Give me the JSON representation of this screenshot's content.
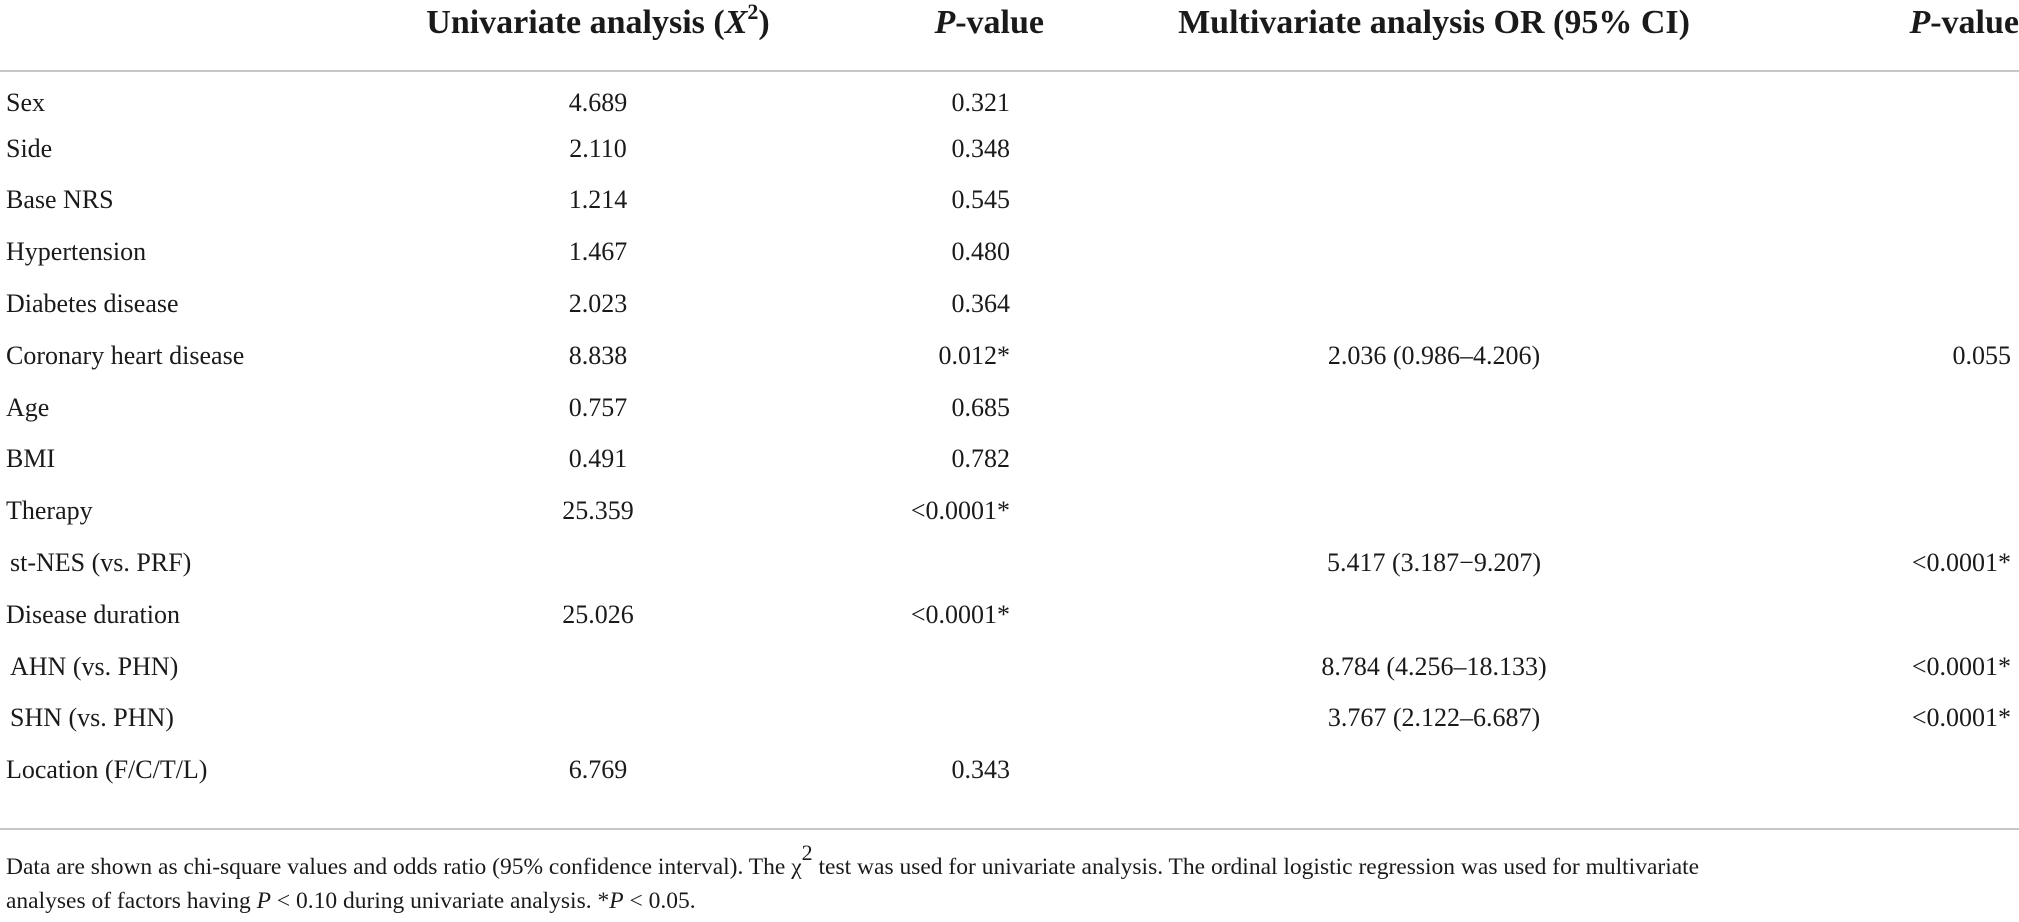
{
  "header": {
    "col1": "Univariate analysis (",
    "col1_var": "X",
    "col1_sup": "2",
    "col1_close": ")",
    "col2_var": "P",
    "col2_rest": "-value",
    "col3": "Multivariate analysis OR (95% CI)",
    "col4_var": "P",
    "col4_rest": "-value"
  },
  "rows": [
    {
      "label": "Sex",
      "uni": "4.689",
      "p1": "0.321",
      "multi": "",
      "p2": ""
    },
    {
      "label": "Side",
      "uni": "2.110",
      "p1": "0.348",
      "multi": "",
      "p2": ""
    },
    {
      "label": "Base NRS",
      "uni": "1.214",
      "p1": "0.545",
      "multi": "",
      "p2": ""
    },
    {
      "label": "Hypertension",
      "uni": "1.467",
      "p1": "0.480",
      "multi": "",
      "p2": ""
    },
    {
      "label": "Diabetes disease",
      "uni": "2.023",
      "p1": "0.364",
      "multi": "",
      "p2": ""
    },
    {
      "label": "Coronary heart disease",
      "uni": "8.838",
      "p1": "0.012*",
      "multi": "2.036 (0.986–4.206)",
      "p2": "0.055"
    },
    {
      "label": "Age",
      "uni": "0.757",
      "p1": "0.685",
      "multi": "",
      "p2": ""
    },
    {
      "label": "BMI",
      "uni": "0.491",
      "p1": "0.782",
      "multi": "",
      "p2": ""
    },
    {
      "label": "Therapy",
      "uni": "25.359",
      "p1": "<0.0001*",
      "multi": "",
      "p2": ""
    },
    {
      "label": "st-NES (vs. PRF)",
      "uni": "",
      "p1": "",
      "multi": "5.417 (3.187−9.207)",
      "p2": "<0.0001*"
    },
    {
      "label": "Disease duration",
      "uni": "25.026",
      "p1": "<0.0001*",
      "multi": "",
      "p2": ""
    },
    {
      "label": "AHN (vs. PHN)",
      "uni": "",
      "p1": "",
      "multi": "8.784 (4.256–18.133)",
      "p2": "<0.0001*"
    },
    {
      "label": "SHN (vs. PHN)",
      "uni": "",
      "p1": "",
      "multi": "3.767 (2.122–6.687)",
      "p2": "<0.0001*"
    },
    {
      "label": "Location (F/C/T/L)",
      "uni": "6.769",
      "p1": "0.343",
      "multi": "",
      "p2": ""
    }
  ],
  "footnote": {
    "line1_a": "Data are shown as chi-square values and odds ratio (95% confidence interval). The χ",
    "line1_sup": "2",
    "line1_b": " test was used for univariate analysis. The ordinal logistic regression was used for multivariate",
    "line2_a": "analyses of factors having ",
    "line2_var1": "P",
    "line2_b": " < 0.10 during univariate analysis. *",
    "line2_var2": "P",
    "line2_c": " < 0.05."
  }
}
